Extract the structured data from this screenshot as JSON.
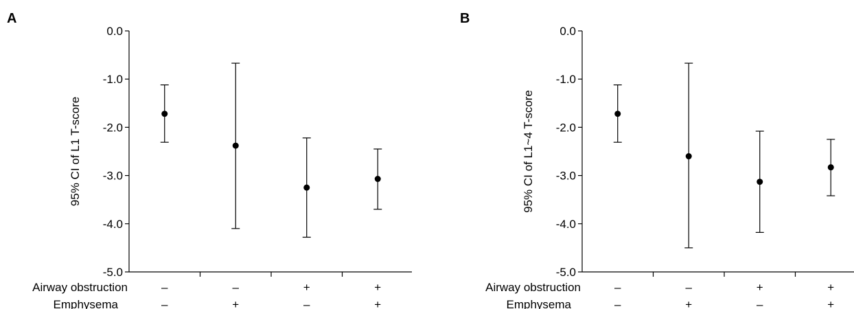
{
  "chart_data": [
    {
      "type": "errorbar",
      "panel_label": "A",
      "ylabel": "95% CI of L1 T-score",
      "ylim": [
        -5.0,
        0.0
      ],
      "yticks": [
        "0.0",
        "-1.0",
        "-2.0",
        "-3.0",
        "-4.0",
        "-5.0"
      ],
      "ytick_values": [
        0,
        -1,
        -2,
        -3,
        -4,
        -5
      ],
      "row_labels": [
        "Airway obstruction",
        "Emphysema"
      ],
      "groups": [
        {
          "airway_obstruction": "–",
          "emphysema": "–",
          "mean": -1.72,
          "lower": -2.31,
          "upper": -1.12
        },
        {
          "airway_obstruction": "–",
          "emphysema": "+",
          "mean": -2.38,
          "lower": -4.1,
          "upper": -0.67
        },
        {
          "airway_obstruction": "+",
          "emphysema": "–",
          "mean": -3.25,
          "lower": -4.28,
          "upper": -2.22
        },
        {
          "airway_obstruction": "+",
          "emphysema": "+",
          "mean": -3.07,
          "lower": -3.7,
          "upper": -2.45
        }
      ]
    },
    {
      "type": "errorbar",
      "panel_label": "B",
      "ylabel": "95% CI of L1~4 T-score",
      "ylim": [
        -5.0,
        0.0
      ],
      "yticks": [
        "0.0",
        "-1.0",
        "-2.0",
        "-3.0",
        "-4.0",
        "-5.0"
      ],
      "ytick_values": [
        0,
        -1,
        -2,
        -3,
        -4,
        -5
      ],
      "row_labels": [
        "Airway obstruction",
        "Emphysema"
      ],
      "groups": [
        {
          "airway_obstruction": "–",
          "emphysema": "–",
          "mean": -1.72,
          "lower": -2.31,
          "upper": -1.12
        },
        {
          "airway_obstruction": "–",
          "emphysema": "+",
          "mean": -2.6,
          "lower": -4.5,
          "upper": -0.67
        },
        {
          "airway_obstruction": "+",
          "emphysema": "–",
          "mean": -3.13,
          "lower": -4.18,
          "upper": -2.08
        },
        {
          "airway_obstruction": "+",
          "emphysema": "+",
          "mean": -2.83,
          "lower": -3.42,
          "upper": -2.25
        }
      ]
    }
  ]
}
